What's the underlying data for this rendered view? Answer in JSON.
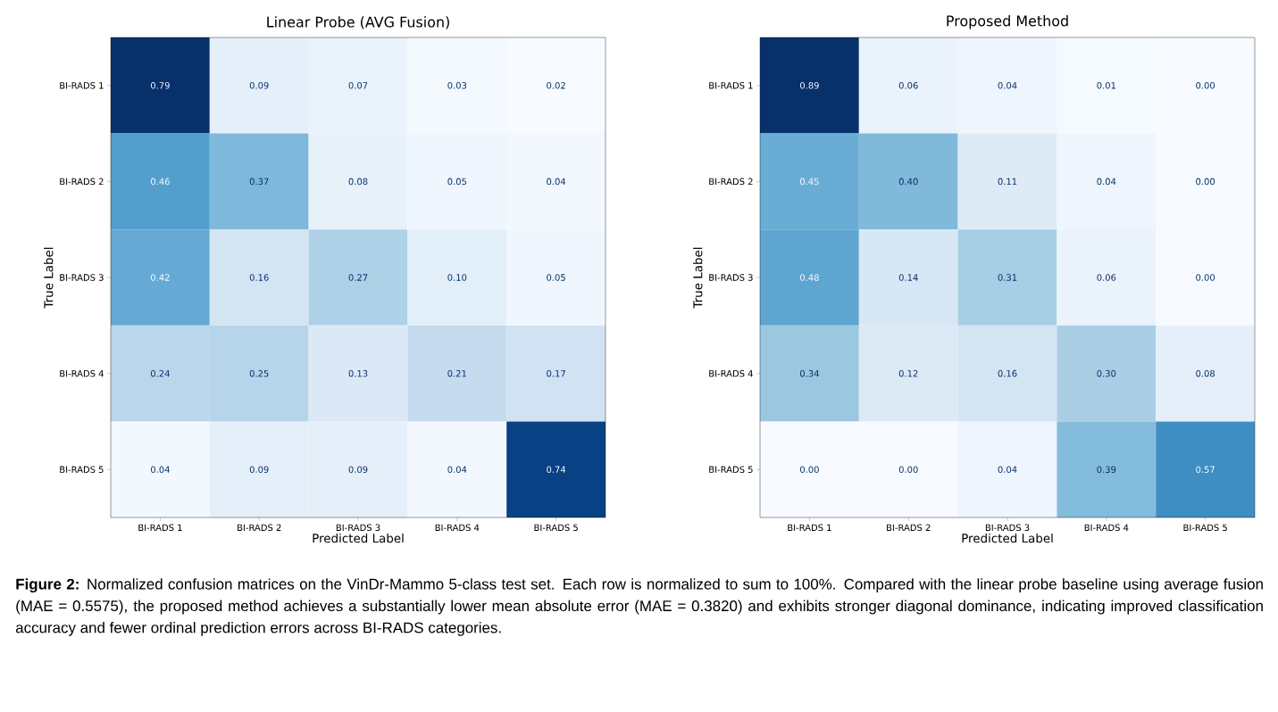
{
  "chart_data": [
    {
      "type": "heatmap",
      "title": "Linear Probe (AVG Fusion)",
      "xlabel": "Predicted Label",
      "ylabel": "True Label",
      "categories": [
        "BI-RADS 1",
        "BI-RADS 2",
        "BI-RADS 3",
        "BI-RADS 4",
        "BI-RADS 5"
      ],
      "y_categories": [
        "BI-RADS 1",
        "BI-RADS 2",
        "BI-RADS 3",
        "BI-RADS 4",
        "BI-RADS 5"
      ],
      "cells": [
        [
          0.79,
          0.09,
          0.07,
          0.03,
          0.02
        ],
        [
          0.46,
          0.37,
          0.08,
          0.05,
          0.04
        ],
        [
          0.42,
          0.16,
          0.27,
          0.1,
          0.05
        ],
        [
          0.24,
          0.25,
          0.13,
          0.21,
          0.17
        ],
        [
          0.04,
          0.09,
          0.09,
          0.04,
          0.74
        ]
      ],
      "cell_labels": [
        [
          "0.79",
          "0.09",
          "0.07",
          "0.03",
          "0.02"
        ],
        [
          "0.46",
          "0.37",
          "0.08",
          "0.05",
          "0.04"
        ],
        [
          "0.42",
          "0.16",
          "0.27",
          "0.10",
          "0.05"
        ],
        [
          "0.24",
          "0.25",
          "0.13",
          "0.21",
          "0.17"
        ],
        [
          "0.04",
          "0.09",
          "0.09",
          "0.04",
          "0.74"
        ]
      ]
    },
    {
      "type": "heatmap",
      "title": "Proposed Method",
      "xlabel": "Predicted Label",
      "ylabel": "True Label",
      "categories": [
        "BI-RADS 1",
        "BI-RADS 2",
        "BI-RADS 3",
        "BI-RADS 4",
        "BI-RADS 5"
      ],
      "y_categories": [
        "BI-RADS 1",
        "BI-RADS 2",
        "BI-RADS 3",
        "BI-RADS 4",
        "BI-RADS 5"
      ],
      "cells": [
        [
          0.89,
          0.06,
          0.04,
          0.01,
          0.0
        ],
        [
          0.45,
          0.4,
          0.11,
          0.04,
          0.0
        ],
        [
          0.48,
          0.14,
          0.31,
          0.06,
          0.0
        ],
        [
          0.34,
          0.12,
          0.16,
          0.3,
          0.08
        ],
        [
          0.0,
          0.0,
          0.04,
          0.39,
          0.57
        ]
      ],
      "cell_labels": [
        [
          "0.89",
          "0.06",
          "0.04",
          "0.01",
          "0.00"
        ],
        [
          "0.45",
          "0.40",
          "0.11",
          "0.04",
          "0.00"
        ],
        [
          "0.48",
          "0.14",
          "0.31",
          "0.06",
          "0.00"
        ],
        [
          "0.34",
          "0.12",
          "0.16",
          "0.30",
          "0.08"
        ],
        [
          "0.00",
          "0.00",
          "0.04",
          "0.39",
          "0.57"
        ]
      ],
      "annotations": [
        "**Figure 2:** Normalized confusion matrices on the VinDr-Mammo 5-class test set. Each row is normalized to sum to 100%. Compared with the linear probe baseline using average fusion (MAE = 0.5575), the proposed method achieves a substantially lower mean absolute error (MAE = 0.3820) and exhibits stronger diagonal dominance, indicating improved classification accuracy and fewer ordinal prediction errors across BI-RADS categories."
      ]
    }
  ]
}
